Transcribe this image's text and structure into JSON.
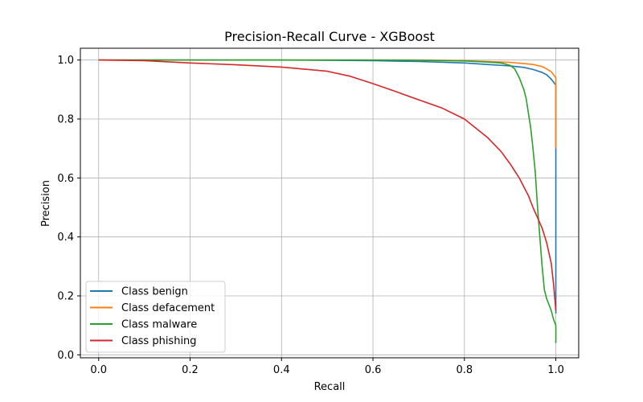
{
  "chart_data": {
    "type": "line",
    "title": "Precision-Recall Curve - XGBoost",
    "xlabel": "Recall",
    "ylabel": "Precision",
    "xlim": [
      -0.04,
      1.05
    ],
    "ylim": [
      -0.01,
      1.04
    ],
    "xticks": [
      0.0,
      0.2,
      0.4,
      0.6,
      0.8,
      1.0
    ],
    "xtick_labels": [
      "0.0",
      "0.2",
      "0.4",
      "0.6",
      "0.8",
      "1.0"
    ],
    "yticks": [
      0.0,
      0.2,
      0.4,
      0.6,
      0.8,
      1.0
    ],
    "ytick_labels": [
      "0.0",
      "0.2",
      "0.4",
      "0.6",
      "0.8",
      "1.0"
    ],
    "grid": true,
    "legend_position": "lower-left",
    "series": [
      {
        "name": "Class benign",
        "color": "#1f77b4",
        "x": [
          0.0,
          0.2,
          0.4,
          0.6,
          0.7,
          0.8,
          0.85,
          0.9,
          0.93,
          0.95,
          0.97,
          0.98,
          0.99,
          0.995,
          1.0,
          1.0
        ],
        "y": [
          1.0,
          1.0,
          1.0,
          0.998,
          0.995,
          0.99,
          0.985,
          0.98,
          0.975,
          0.968,
          0.958,
          0.95,
          0.935,
          0.925,
          0.915,
          0.14
        ]
      },
      {
        "name": "Class defacement",
        "color": "#ff7f0e",
        "x": [
          0.0,
          0.2,
          0.5,
          0.7,
          0.8,
          0.85,
          0.9,
          0.93,
          0.95,
          0.97,
          0.98,
          0.99,
          0.995,
          1.0,
          1.0
        ],
        "y": [
          1.0,
          1.0,
          1.0,
          1.0,
          0.998,
          0.995,
          0.992,
          0.988,
          0.985,
          0.978,
          0.97,
          0.96,
          0.95,
          0.94,
          0.7
        ]
      },
      {
        "name": "Class malware",
        "color": "#2ca02c",
        "x": [
          0.0,
          0.2,
          0.4,
          0.6,
          0.7,
          0.8,
          0.85,
          0.88,
          0.9,
          0.91,
          0.92,
          0.93,
          0.935,
          0.94,
          0.945,
          0.95,
          0.955,
          0.96,
          0.965,
          0.97,
          0.975,
          0.98,
          0.985,
          0.99,
          0.995,
          1.0,
          1.0
        ],
        "y": [
          1.0,
          1.0,
          1.0,
          1.0,
          0.999,
          0.997,
          0.993,
          0.99,
          0.982,
          0.97,
          0.94,
          0.9,
          0.87,
          0.82,
          0.77,
          0.7,
          0.62,
          0.5,
          0.4,
          0.3,
          0.22,
          0.19,
          0.17,
          0.15,
          0.12,
          0.1,
          0.04
        ]
      },
      {
        "name": "Class phishing",
        "color": "#d62728",
        "x": [
          0.0,
          0.1,
          0.2,
          0.3,
          0.4,
          0.5,
          0.55,
          0.6,
          0.65,
          0.7,
          0.75,
          0.8,
          0.85,
          0.88,
          0.9,
          0.92,
          0.93,
          0.94,
          0.95,
          0.96,
          0.97,
          0.98,
          0.99,
          0.995,
          1.0
        ],
        "y": [
          1.0,
          0.998,
          0.99,
          0.984,
          0.976,
          0.962,
          0.945,
          0.92,
          0.893,
          0.865,
          0.838,
          0.8,
          0.738,
          0.69,
          0.648,
          0.6,
          0.57,
          0.54,
          0.5,
          0.465,
          0.43,
          0.38,
          0.31,
          0.24,
          0.15
        ]
      }
    ]
  }
}
